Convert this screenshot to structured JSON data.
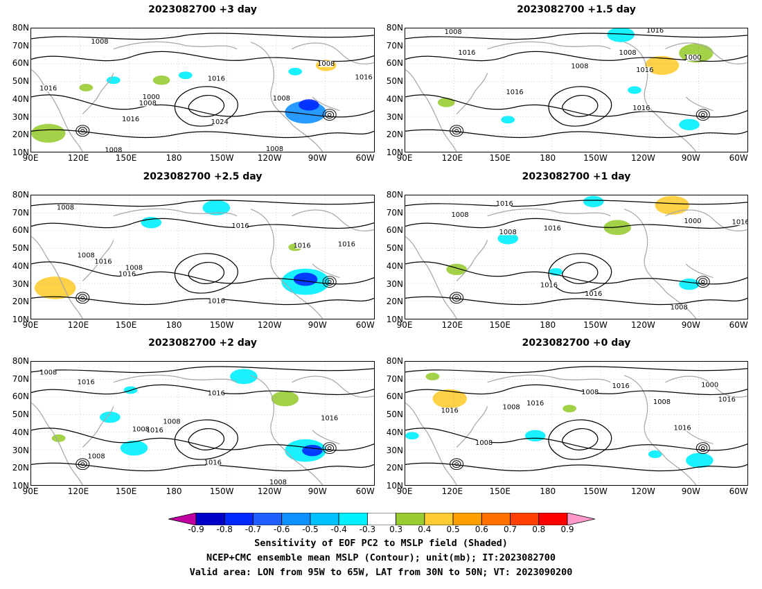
{
  "panels": [
    {
      "id": "p3",
      "title": "2023082700  +3 day"
    },
    {
      "id": "p15",
      "title": "2023082700  +1.5 day"
    },
    {
      "id": "p25",
      "title": "2023082700  +2.5 day"
    },
    {
      "id": "p1",
      "title": "2023082700  +1 day"
    },
    {
      "id": "p2",
      "title": "2023082700  +2 day"
    },
    {
      "id": "p0",
      "title": "2023082700  +0 day"
    }
  ],
  "lat_ticks": [
    "80N",
    "70N",
    "60N",
    "50N",
    "40N",
    "30N",
    "20N",
    "10N"
  ],
  "lon_ticks": [
    "90E",
    "120E",
    "150E",
    "180",
    "150W",
    "120W",
    "90W",
    "60W"
  ],
  "contour_labels": {
    "p3": [
      "1008",
      "1016",
      "1000",
      "1008",
      "1016",
      "1024",
      "1016",
      "1008",
      "1008",
      "1016",
      "1008",
      "1008"
    ],
    "p15": [
      "1008",
      "1008",
      "1016",
      "1008",
      "1016",
      "1000",
      "1016",
      "1016",
      "1016"
    ],
    "p25": [
      "1008",
      "1008",
      "1016",
      "1008",
      "1016",
      "1016",
      "1016",
      "1016",
      "1016"
    ],
    "p1": [
      "1008",
      "1016",
      "1008",
      "1016",
      "1016",
      "1016",
      "1000",
      "1016",
      "1008"
    ],
    "p2": [
      "1008",
      "1016",
      "1016",
      "1008",
      "1016",
      "1008",
      "1016",
      "1016",
      "1008",
      "1008"
    ],
    "p0": [
      "1008",
      "1016",
      "1008",
      "1016",
      "1016",
      "1008",
      "1000",
      "1016",
      "1016",
      "1008"
    ]
  },
  "colorbar": {
    "labels": [
      "-0.9",
      "-0.8",
      "-0.7",
      "-0.6",
      "-0.5",
      "-0.4",
      "-0.3",
      "0.3",
      "0.4",
      "0.5",
      "0.6",
      "0.7",
      "0.8",
      "0.9"
    ],
    "colors": [
      "#c000a0",
      "#0000c8",
      "#0028ff",
      "#2060ff",
      "#1090ff",
      "#00c0ff",
      "#00f0ff",
      "#ffffff",
      "#99cc33",
      "#ffcc33",
      "#ffa000",
      "#ff7000",
      "#ff4000",
      "#ff0000",
      "#ff99cc"
    ]
  },
  "footer": {
    "line1": "Sensitivity of EOF PC2 to MSLP field (Shaded)",
    "line2": "NCEP+CMC ensemble mean MSLP (Contour); unit(mb); IT:2023082700",
    "line3": "Valid area: LON from 95W to 65W, LAT from 30N to 50N; VT: 2023090200"
  }
}
